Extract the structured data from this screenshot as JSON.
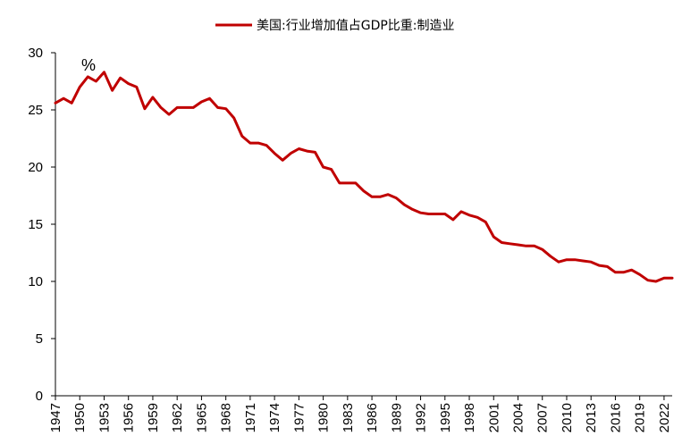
{
  "chart_data": {
    "type": "line",
    "title": "",
    "unit_label": "%",
    "xlabel": "",
    "ylabel": "",
    "ylim": [
      0,
      30
    ],
    "yticks": [
      0,
      5,
      10,
      15,
      20,
      25,
      30
    ],
    "xlim": [
      1947,
      2023
    ],
    "xtick_labels": [
      "1947",
      "1950",
      "1953",
      "1956",
      "1959",
      "1962",
      "1965",
      "1968",
      "1971",
      "1974",
      "1977",
      "1980",
      "1983",
      "1986",
      "1989",
      "1992",
      "1995",
      "1998",
      "2001",
      "2004",
      "2007",
      "2010",
      "2013",
      "2016",
      "2019",
      "2022"
    ],
    "grid": false,
    "legend_position": "top-center",
    "series": [
      {
        "name": "美国:行业增加值占GDP比重:制造业",
        "color": "#C00000",
        "x": [
          1947,
          1948,
          1949,
          1950,
          1951,
          1952,
          1953,
          1954,
          1955,
          1956,
          1957,
          1958,
          1959,
          1960,
          1961,
          1962,
          1963,
          1964,
          1965,
          1966,
          1967,
          1968,
          1969,
          1970,
          1971,
          1972,
          1973,
          1974,
          1975,
          1976,
          1977,
          1978,
          1979,
          1980,
          1981,
          1982,
          1983,
          1984,
          1985,
          1986,
          1987,
          1988,
          1989,
          1990,
          1991,
          1992,
          1993,
          1994,
          1995,
          1996,
          1997,
          1998,
          1999,
          2000,
          2001,
          2002,
          2003,
          2004,
          2005,
          2006,
          2007,
          2008,
          2009,
          2010,
          2011,
          2012,
          2013,
          2014,
          2015,
          2016,
          2017,
          2018,
          2019,
          2020,
          2021,
          2022,
          2023
        ],
        "values": [
          25.6,
          26.0,
          25.6,
          27.0,
          27.9,
          27.5,
          28.3,
          26.7,
          27.8,
          27.3,
          27.0,
          25.1,
          26.1,
          25.2,
          24.6,
          25.2,
          25.2,
          25.2,
          25.7,
          26.0,
          25.2,
          25.1,
          24.3,
          22.7,
          22.1,
          22.1,
          21.9,
          21.2,
          20.6,
          21.2,
          21.6,
          21.4,
          21.3,
          20.0,
          19.8,
          18.6,
          18.6,
          18.6,
          17.9,
          17.4,
          17.4,
          17.6,
          17.3,
          16.7,
          16.3,
          16.0,
          15.9,
          15.9,
          15.9,
          15.4,
          16.1,
          15.8,
          15.6,
          15.2,
          13.9,
          13.4,
          13.3,
          13.2,
          13.1,
          13.1,
          12.8,
          12.2,
          11.7,
          11.9,
          11.9,
          11.8,
          11.7,
          11.4,
          11.3,
          10.8,
          10.8,
          11.0,
          10.6,
          10.1,
          10.0,
          10.3,
          10.3
        ]
      }
    ]
  }
}
